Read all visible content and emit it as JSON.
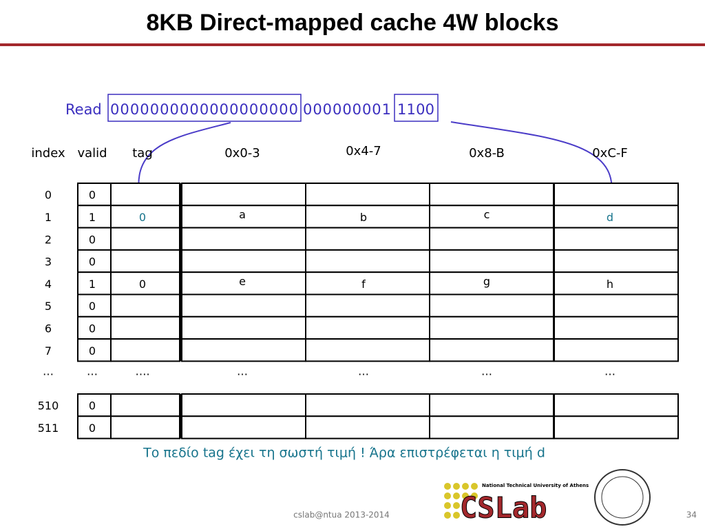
{
  "title": "8KB Direct-mapped cache 4W blocks",
  "address": {
    "label": "Read",
    "tag": "0000000000000000000",
    "index": "000000001",
    "offset": "1100"
  },
  "columns": [
    "index",
    "valid",
    "tag",
    "0x0-3",
    "0x4-7",
    "0x8-B",
    "0xC-F"
  ],
  "rows": [
    {
      "index": "0",
      "valid": "0"
    },
    {
      "index": "1",
      "valid": "1",
      "tag": "0",
      "words": [
        "a",
        "b",
        "c",
        "d"
      ]
    },
    {
      "index": "2",
      "valid": "0"
    },
    {
      "index": "3",
      "valid": "0"
    },
    {
      "index": "4",
      "valid": "1",
      "tag": "0",
      "words": [
        "e",
        "f",
        "g",
        "h"
      ]
    },
    {
      "index": "5",
      "valid": "0"
    },
    {
      "index": "6",
      "valid": "0"
    },
    {
      "index": "7",
      "valid": "0"
    },
    {
      "index": "510",
      "valid": "0"
    },
    {
      "index": "511",
      "valid": "0"
    }
  ],
  "ellipsis": [
    "…",
    "…",
    "….",
    "…",
    "…",
    "…",
    "…"
  ],
  "note": "Το πεδίο tag έχει τη σωστή τιμή ! Άρα επιστρέφεται η τιμή d",
  "footer": "cslab@ntua 2013-2014",
  "page_number": "34",
  "logo": {
    "name": "CSLab",
    "subtitle": "National Technical University of Athens"
  }
}
